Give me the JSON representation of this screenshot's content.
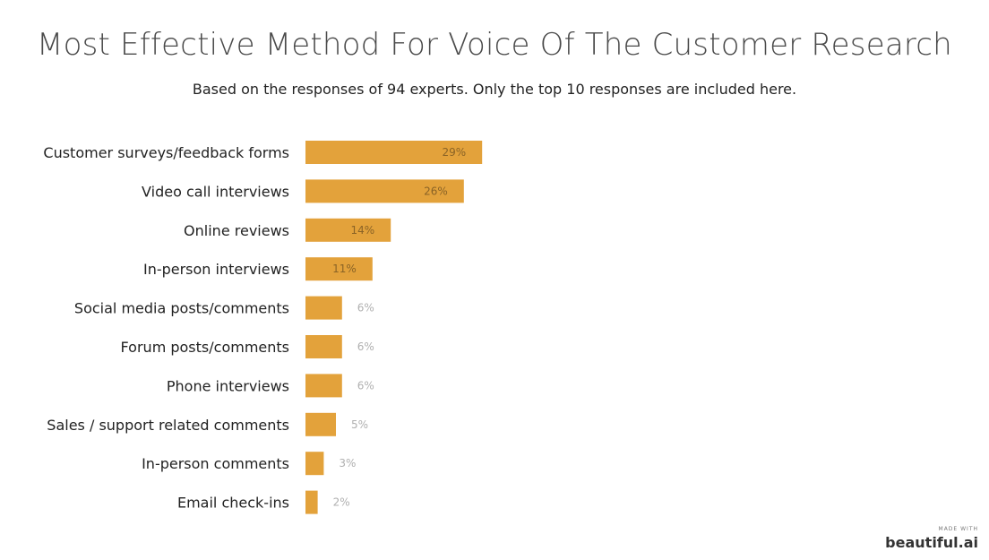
{
  "title": "Most Effective Method For Voice Of The Customer Research",
  "subtitle": "Based on the responses of 94 experts. Only the top 10 responses are included here.",
  "branding": {
    "made_with": "MADE WITH",
    "name": "beautiful.ai"
  },
  "colors": {
    "bar": "#E3A23B",
    "label_inside": "#8a6326",
    "label_outside": "#b0b0b0"
  },
  "chart_data": {
    "type": "bar",
    "orientation": "horizontal",
    "title": "Most Effective Method For Voice Of The Customer Research",
    "subtitle": "Based on the responses of 94 experts. Only the top 10 responses are included here.",
    "categories": [
      "Customer surveys/feedback forms",
      "Video call interviews",
      "Online reviews",
      "In-person interviews",
      "Social media posts/comments",
      "Forum posts/comments",
      "Phone interviews",
      "Sales / support related comments",
      "In-person comments",
      "Email check-ins"
    ],
    "values": [
      29,
      26,
      14,
      11,
      6,
      6,
      6,
      5,
      3,
      2
    ],
    "value_labels": [
      "29%",
      "26%",
      "14%",
      "11%",
      "6%",
      "6%",
      "6%",
      "5%",
      "3%",
      "2%"
    ],
    "unit": "%",
    "grid": false,
    "legend": "none"
  }
}
